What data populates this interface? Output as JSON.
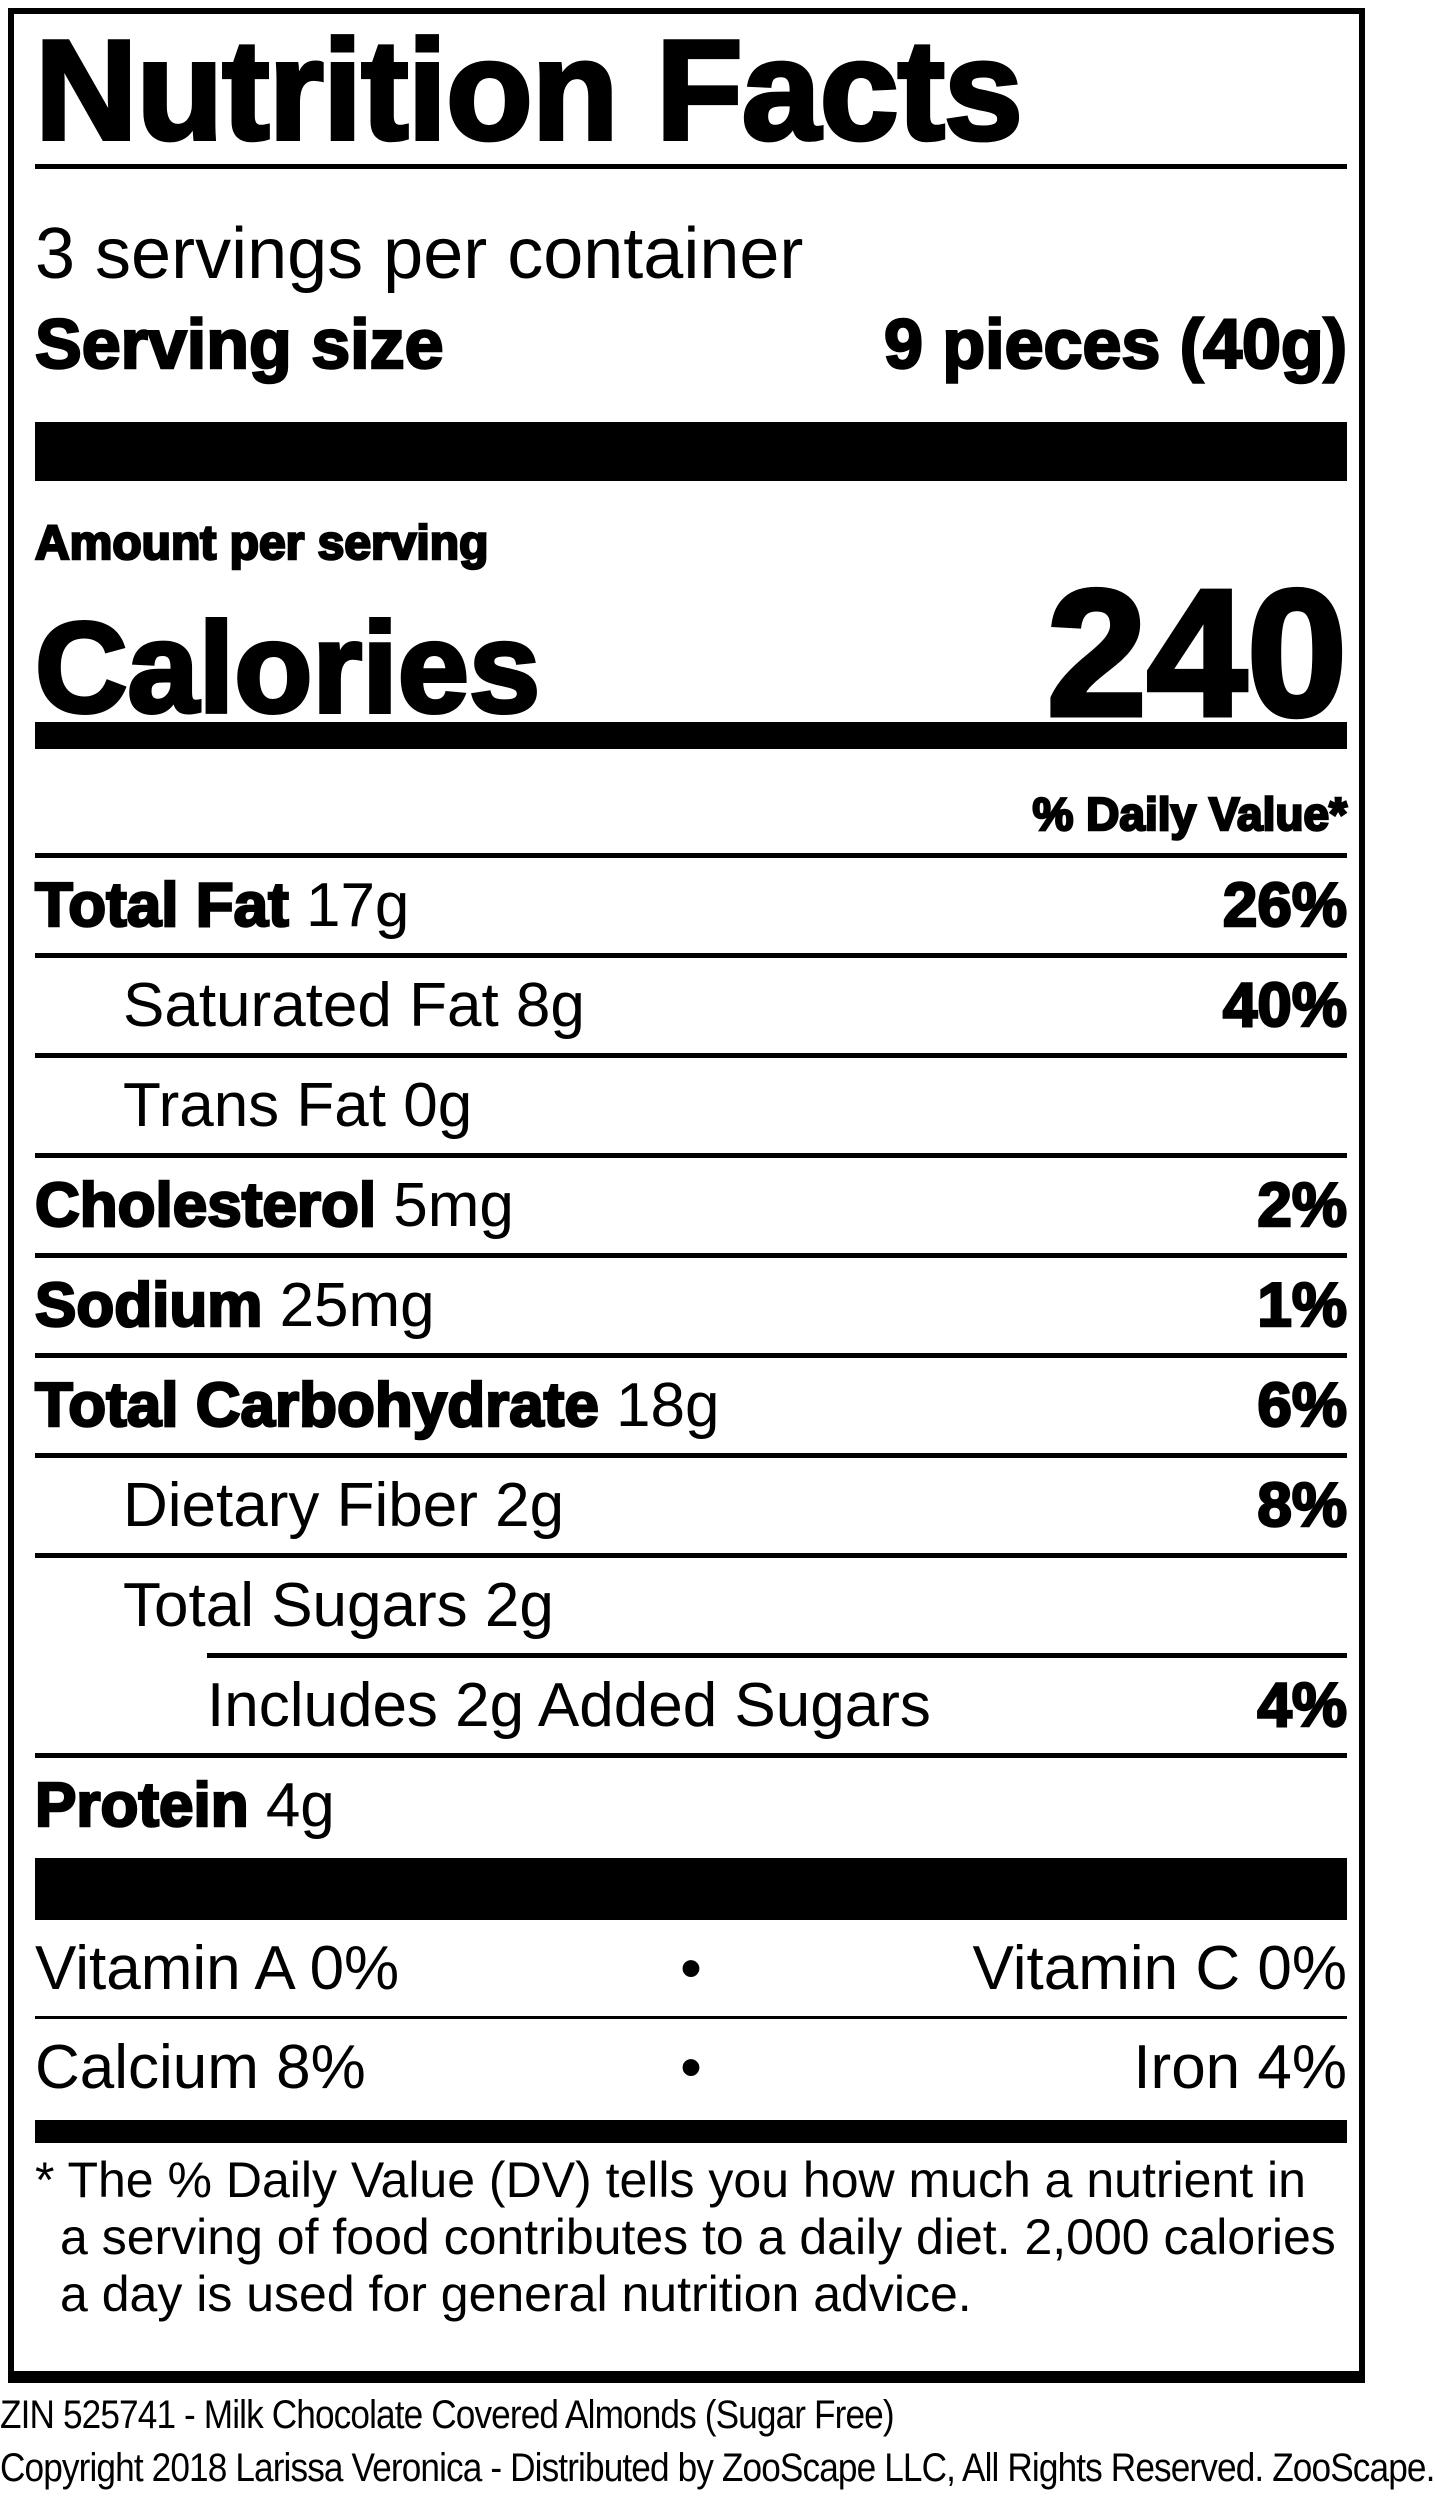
{
  "title": "Nutrition Facts",
  "servings_per_container": "3 servings per container",
  "serving_size_label": "Serving size",
  "serving_size_value": "9 pieces (40g)",
  "amount_per_serving": "Amount per serving",
  "calories_label": "Calories",
  "calories_value": "240",
  "daily_value_header": "% Daily Value*",
  "nutrients": [
    {
      "name": "Total Fat",
      "amount": "17g",
      "dv": "26%"
    },
    {
      "name": "Saturated Fat",
      "amount": "8g",
      "dv": "40%"
    },
    {
      "name": "Trans Fat",
      "amount": "0g",
      "dv": ""
    },
    {
      "name": "Cholesterol",
      "amount": "5mg",
      "dv": "2%"
    },
    {
      "name": "Sodium",
      "amount": "25mg",
      "dv": "1%"
    },
    {
      "name": "Total Carbohydrate",
      "amount": "18g",
      "dv": "6%"
    },
    {
      "name": "Dietary Fiber",
      "amount": "2g",
      "dv": "8%"
    },
    {
      "name": "Total Sugars",
      "amount": "2g",
      "dv": ""
    },
    {
      "name": "Includes 2g Added Sugars",
      "amount": "",
      "dv": "4%"
    },
    {
      "name": "Protein",
      "amount": "4g",
      "dv": ""
    }
  ],
  "vitamins": [
    {
      "left": "Vitamin A 0%",
      "sep": "•",
      "right": "Vitamin C 0%"
    },
    {
      "left": "Calcium 8%",
      "sep": "•",
      "right": "Iron 4%"
    }
  ],
  "footnote": "* The % Daily Value (DV) tells you how much a nutrient in a serving of food contributes to a daily diet. 2,000 calories a day is used for general nutrition advice.",
  "footer": {
    "product": "ZIN 525741 - Milk Chocolate Covered Almonds (Sugar Free)",
    "copyright": "Copyright 2018 Larissa Veronica - Distributed by ZooScape LLC, All Rights Reserved. ZooScape."
  }
}
